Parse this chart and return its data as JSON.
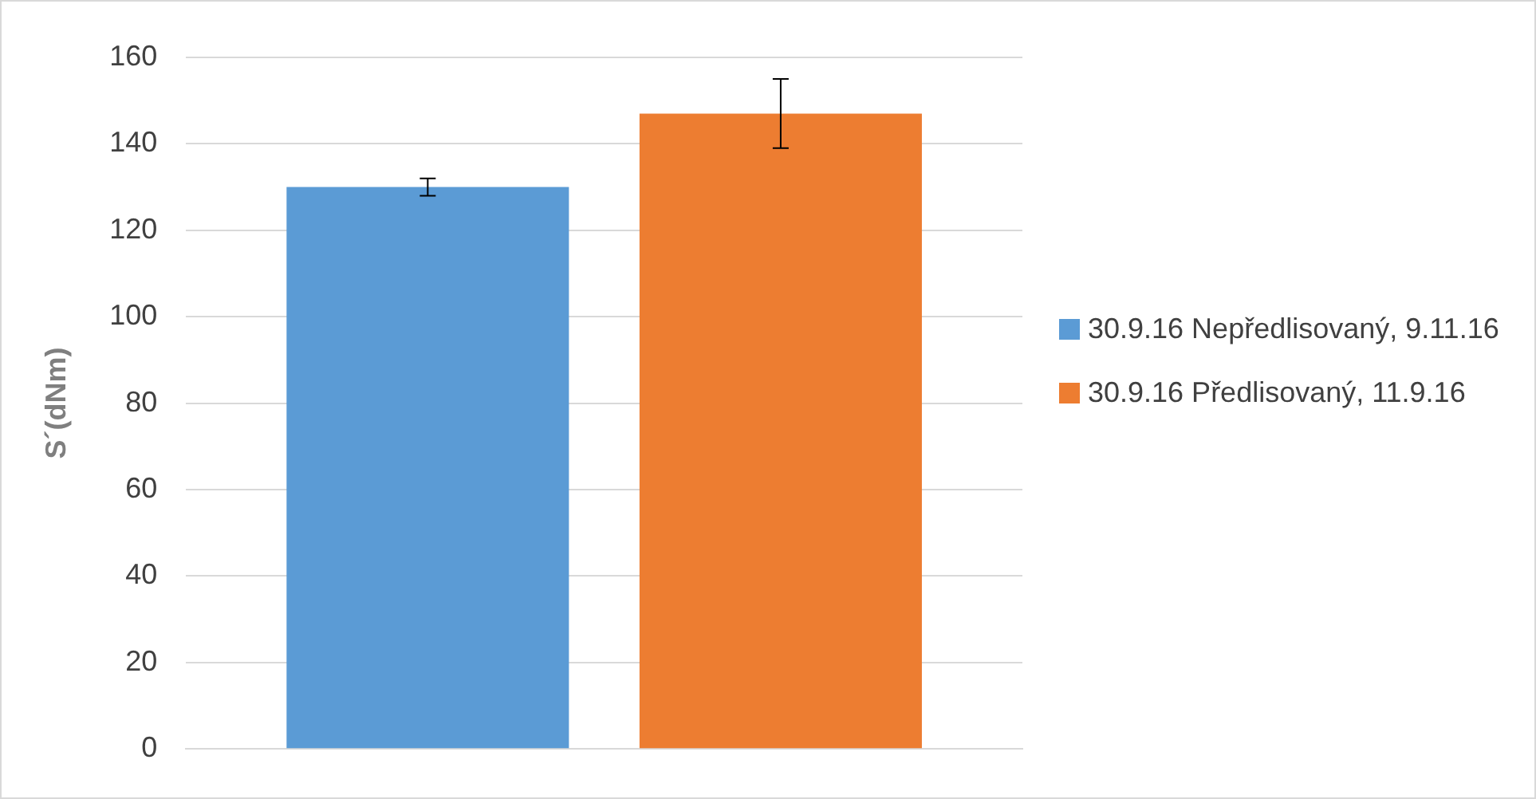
{
  "chart_data": {
    "type": "bar",
    "ylabel": "S´(dNm)",
    "categories": [
      null
    ],
    "series": [
      {
        "name": "30.9.16 Nepředlisovaný, 9.11.16",
        "color": "#5b9bd5",
        "values": [
          130
        ],
        "errors": [
          2
        ]
      },
      {
        "name": "30.9.16 Předlisovaný, 11.9.16",
        "color": "#ed7d31",
        "values": [
          147
        ],
        "errors": [
          8
        ]
      }
    ],
    "ylim": [
      0,
      160
    ],
    "yticks": [
      0,
      20,
      40,
      60,
      80,
      100,
      120,
      140,
      160
    ],
    "grid": "y",
    "legend": "right"
  }
}
